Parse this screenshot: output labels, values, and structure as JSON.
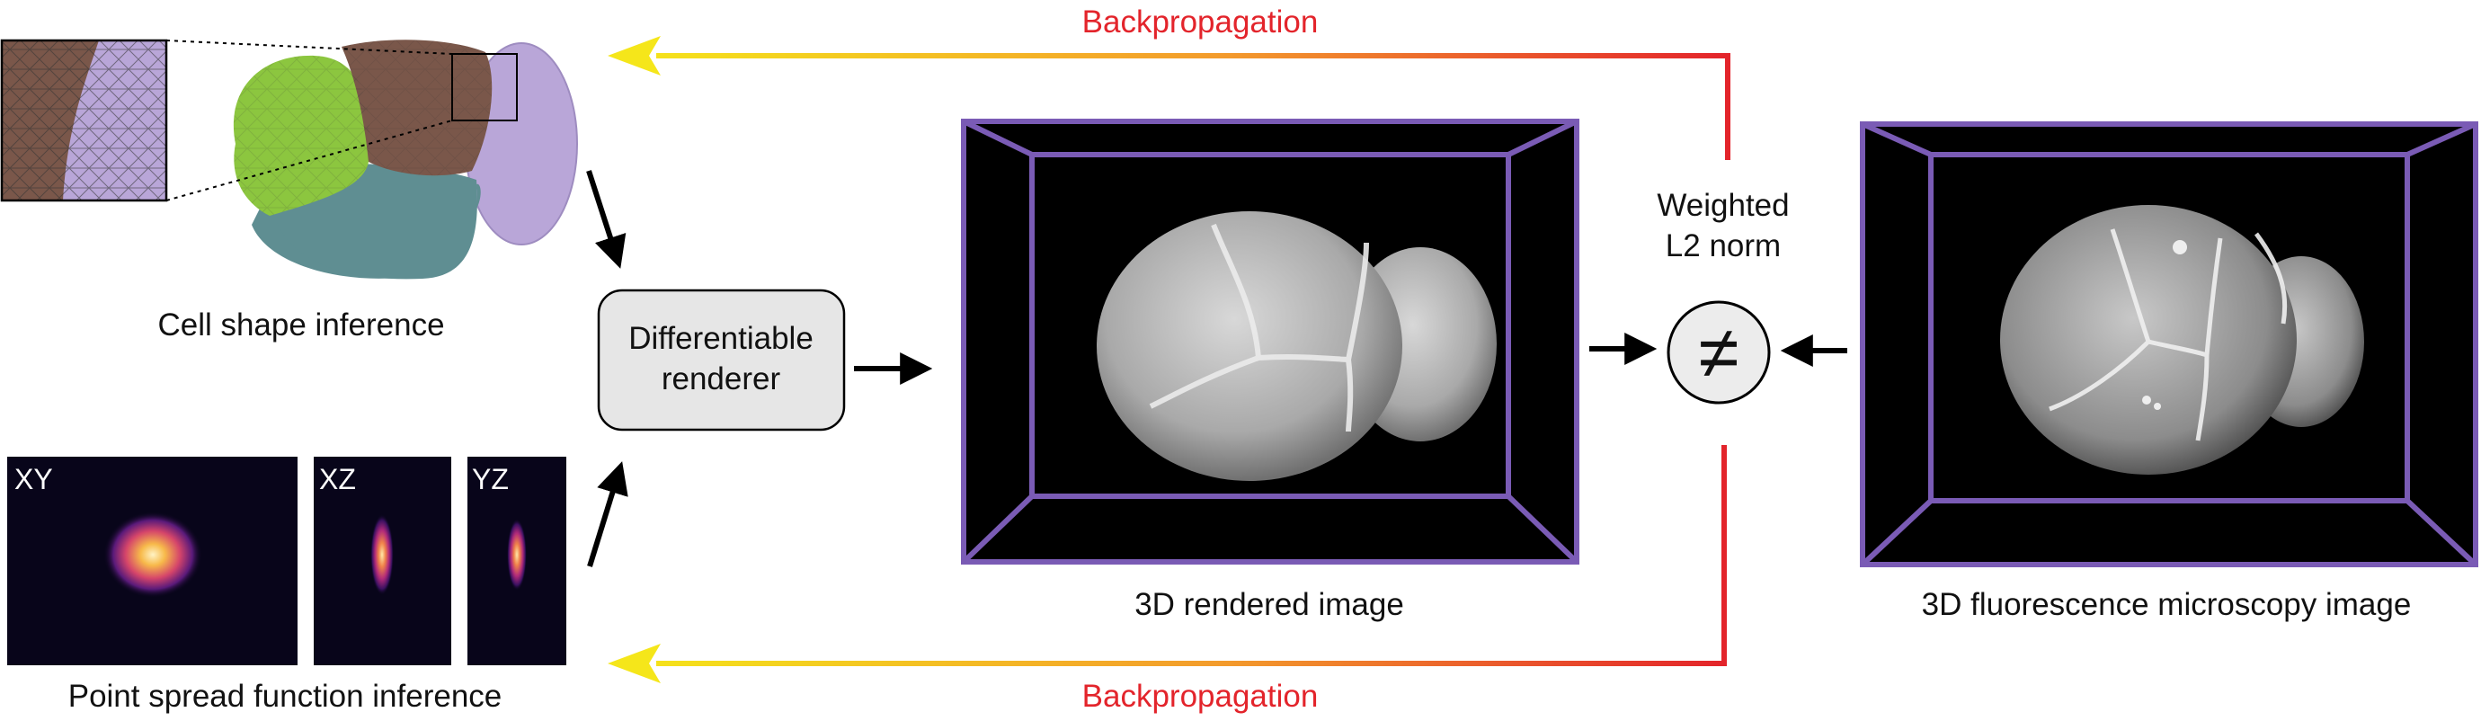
{
  "labels": {
    "backprop_top": "Backpropagation",
    "backprop_bottom": "Backpropagation",
    "cell_shape": "Cell shape inference",
    "psf": "Point spread function inference",
    "renderer_line1": "Differentiable",
    "renderer_line2": "renderer",
    "rendered": "3D rendered image",
    "microscopy": "3D fluorescence microscopy image",
    "norm_line1": "Weighted",
    "norm_line2": "L2 norm",
    "not_equal_symbol": "≠"
  },
  "psf_panels": [
    "XY",
    "XZ",
    "YZ"
  ],
  "colors": {
    "backprop": "#e3242b",
    "gradient_start": "#f5e61a",
    "gradient_end": "#e3242b",
    "frame_purple": "#7a5bb5",
    "cell_green": "#8cc63f",
    "cell_brown": "#7a574a",
    "cell_lavender": "#b9a6d8",
    "cell_teal": "#5f8e92",
    "renderer_fill": "#e6e6e6"
  }
}
